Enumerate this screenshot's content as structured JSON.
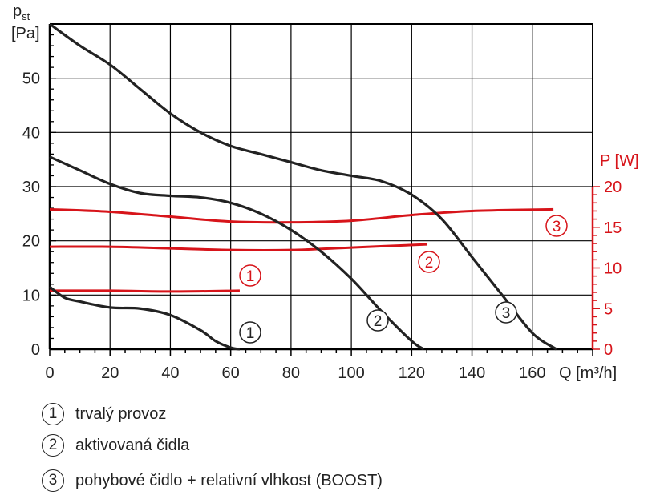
{
  "chart_data": {
    "type": "line",
    "xlabel": "Q [m³/h]",
    "ylabel": "p",
    "ylabel_sub": "st",
    "ylabel_unit": "[Pa]",
    "y2label": "P [W]",
    "xlim": [
      0,
      180
    ],
    "ylim": [
      0,
      60
    ],
    "y2lim": [
      0,
      20
    ],
    "x_ticks": [
      0,
      20,
      40,
      60,
      80,
      100,
      120,
      140,
      160
    ],
    "y_ticks": [
      0,
      10,
      20,
      30,
      40,
      50
    ],
    "y2_ticks": [
      0,
      5,
      10,
      15,
      20
    ],
    "grid": true,
    "colors": {
      "pressure": "#222222",
      "power": "#d7141a"
    },
    "pressure_series": [
      {
        "label": "1",
        "x": [
          0,
          5,
          10,
          20,
          30,
          40,
          50,
          55,
          60,
          63
        ],
        "y": [
          11.5,
          9.5,
          8.8,
          7.7,
          7.5,
          6.3,
          3.5,
          1.5,
          0.3,
          0
        ]
      },
      {
        "label": "2",
        "x": [
          0,
          10,
          20,
          30,
          40,
          50,
          60,
          70,
          80,
          90,
          100,
          110,
          120,
          124
        ],
        "y": [
          35.5,
          33,
          30.5,
          28.8,
          28.3,
          28,
          27,
          25,
          22,
          18,
          13,
          7,
          1.5,
          0
        ]
      },
      {
        "label": "3",
        "x": [
          0,
          10,
          20,
          30,
          40,
          50,
          60,
          70,
          80,
          90,
          100,
          110,
          120,
          130,
          140,
          150,
          160,
          168
        ],
        "y": [
          60,
          56,
          52.5,
          48,
          43.5,
          40,
          37.5,
          36,
          34.5,
          33,
          32,
          31,
          28.5,
          24,
          17,
          10,
          3,
          0
        ]
      }
    ],
    "power_series": [
      {
        "label": "1",
        "x": [
          0,
          20,
          40,
          63
        ],
        "y": [
          7.2,
          7.2,
          7.1,
          7.2
        ]
      },
      {
        "label": "2",
        "x": [
          0,
          20,
          40,
          60,
          80,
          100,
          125
        ],
        "y": [
          12.6,
          12.6,
          12.4,
          12.2,
          12.2,
          12.5,
          12.9
        ]
      },
      {
        "label": "3",
        "x": [
          0,
          20,
          40,
          60,
          80,
          100,
          120,
          140,
          167
        ],
        "y": [
          17.2,
          16.9,
          16.3,
          15.7,
          15.6,
          15.8,
          16.5,
          17.0,
          17.2
        ]
      }
    ],
    "legend": [
      {
        "num": "1",
        "text": "trvalý provoz"
      },
      {
        "num": "2",
        "text": "aktivovaná čidla"
      },
      {
        "num": "3",
        "text": "pohybové čidlo + relativní vlhkost (BOOST)"
      }
    ]
  }
}
